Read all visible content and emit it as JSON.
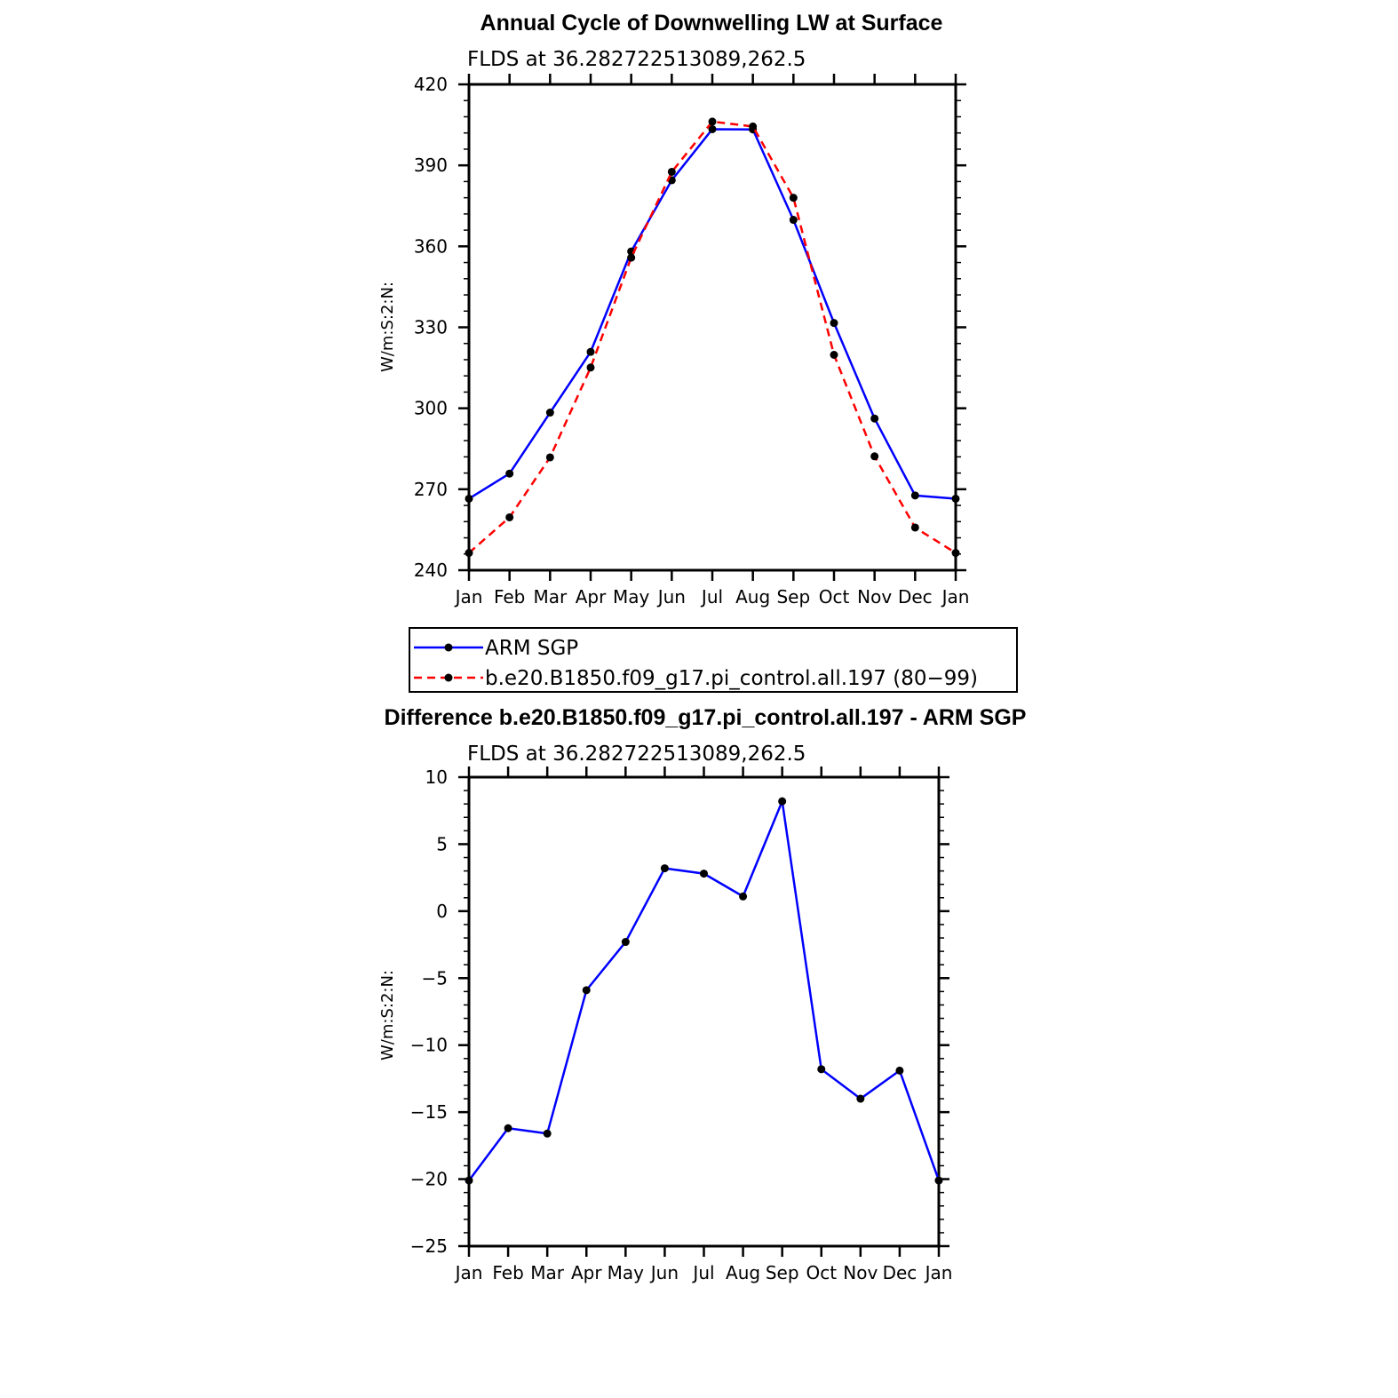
{
  "chart_data": [
    {
      "type": "line",
      "title": "Annual Cycle of Downwelling LW at Surface",
      "subtitle": "FLDS at 36.282722513089,262.5",
      "ylabel": "W/m:S:2:N:",
      "xlabel": "",
      "categories": [
        "Jan",
        "Feb",
        "Mar",
        "Apr",
        "May",
        "Jun",
        "Jul",
        "Aug",
        "Sep",
        "Oct",
        "Nov",
        "Dec",
        "Jan"
      ],
      "ylim": [
        240,
        420
      ],
      "yticks": [
        240,
        270,
        300,
        330,
        360,
        390,
        420
      ],
      "grid": false,
      "legend_position": "bottom",
      "series": [
        {
          "name": "ARM SGP",
          "color": "#0000ff",
          "dash": "solid",
          "values": [
            266.5,
            275.8,
            298.4,
            320.9,
            358.1,
            384.5,
            403.4,
            403.3,
            369.8,
            331.6,
            296.2,
            267.7,
            266.5
          ]
        },
        {
          "name": "b.e20.B1850.f09_g17.pi_control.all.197 (80−99)",
          "color": "#ff0000",
          "dash": "dashed",
          "values": [
            246.4,
            259.6,
            281.8,
            315.1,
            355.8,
            387.6,
            406.2,
            404.4,
            378.0,
            319.8,
            282.2,
            255.8,
            246.4
          ]
        }
      ]
    },
    {
      "type": "line",
      "title": "Difference b.e20.B1850.f09_g17.pi_control.all.197 - ARM SGP",
      "subtitle": "FLDS at 36.282722513089,262.5",
      "ylabel": "W/m:S:2:N:",
      "xlabel": "",
      "categories": [
        "Jan",
        "Feb",
        "Mar",
        "Apr",
        "May",
        "Jun",
        "Jul",
        "Aug",
        "Sep",
        "Oct",
        "Nov",
        "Dec",
        "Jan"
      ],
      "ylim": [
        -25,
        10
      ],
      "yticks": [
        -25,
        -20,
        -15,
        -10,
        -5,
        0,
        5,
        10
      ],
      "ytick_labels": [
        "−25",
        "−20",
        "−15",
        "−10",
        "−5",
        "0",
        "5",
        "10"
      ],
      "grid": false,
      "series": [
        {
          "color": "#0000ff",
          "dash": "solid",
          "values": [
            -20.1,
            -16.2,
            -16.6,
            -5.9,
            -2.3,
            3.2,
            2.8,
            1.1,
            8.2,
            -11.8,
            -14.0,
            -11.9,
            -20.1
          ]
        }
      ]
    }
  ]
}
